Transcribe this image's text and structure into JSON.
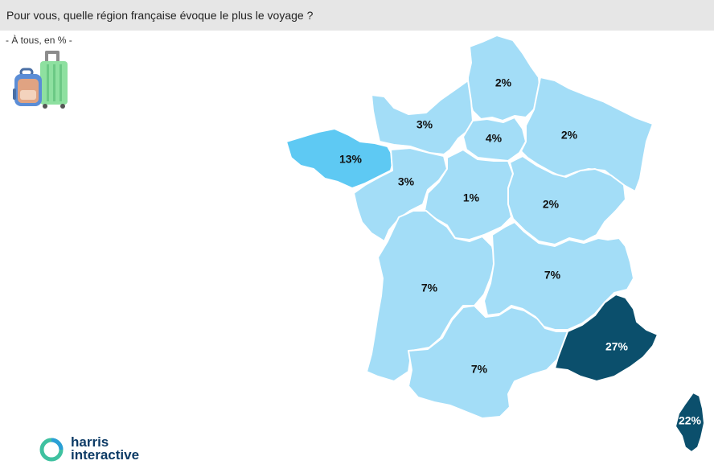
{
  "header": {
    "title": "Pour vous, quelle région française évoque le plus le voyage ?",
    "subtitle": "- À tous, en % -"
  },
  "colors": {
    "light_region": "#a3ddf7",
    "medium_region": "#5ec9f3",
    "dark_region": "#0b4f6c",
    "border": "#ffffff",
    "title_bg": "#e6e6e6"
  },
  "map_data": {
    "regions": [
      {
        "id": "hauts-de-france",
        "value": 2,
        "label": "2%"
      },
      {
        "id": "normandie",
        "value": 3,
        "label": "3%"
      },
      {
        "id": "ile-de-france",
        "value": 4,
        "label": "4%"
      },
      {
        "id": "grand-est",
        "value": 2,
        "label": "2%"
      },
      {
        "id": "bretagne",
        "value": 13,
        "label": "13%"
      },
      {
        "id": "pays-de-la-loire",
        "value": 3,
        "label": "3%"
      },
      {
        "id": "centre-val-de-loire",
        "value": 1,
        "label": "1%"
      },
      {
        "id": "bourgogne-franche-comte",
        "value": 2,
        "label": "2%"
      },
      {
        "id": "nouvelle-aquitaine",
        "value": 7,
        "label": "7%"
      },
      {
        "id": "auvergne-rhone-alpes",
        "value": 7,
        "label": "7%"
      },
      {
        "id": "occitanie",
        "value": 7,
        "label": "7%"
      },
      {
        "id": "provence-alpes-cote-d-azur",
        "value": 27,
        "label": "27%"
      },
      {
        "id": "corse",
        "value": 22,
        "label": "22%"
      }
    ]
  },
  "logo": {
    "line1": "harris",
    "line2": "interactive"
  },
  "icons": {
    "luggage": "luggage-icon",
    "logo_mark": "harris-ring-icon"
  }
}
